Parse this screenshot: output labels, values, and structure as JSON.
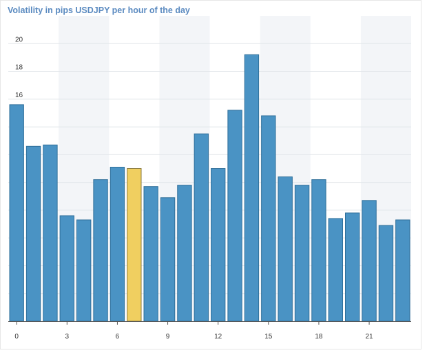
{
  "chart_data": {
    "type": "bar",
    "title": "Volatility in pips USDJPY per hour of the day",
    "xlabel": "",
    "ylabel": "",
    "categories": [
      0,
      1,
      2,
      3,
      4,
      5,
      6,
      7,
      8,
      9,
      10,
      11,
      12,
      13,
      14,
      15,
      16,
      17,
      18,
      19,
      20,
      21,
      22,
      23
    ],
    "values": [
      15.6,
      12.6,
      12.7,
      7.6,
      7.3,
      10.2,
      11.1,
      11.0,
      9.7,
      8.9,
      9.8,
      13.5,
      11.0,
      15.2,
      19.2,
      14.8,
      10.4,
      9.8,
      10.2,
      7.4,
      7.8,
      8.7,
      6.9,
      7.3
    ],
    "highlighted_index": 7,
    "ylim": [
      0,
      22
    ],
    "yticks": [
      0,
      2,
      4,
      6,
      8,
      10,
      12,
      14,
      16,
      18,
      20
    ],
    "xticks": [
      0,
      3,
      6,
      9,
      12,
      15,
      18,
      21
    ],
    "grid": true,
    "legend": "none"
  },
  "colors": {
    "bar": "#4a93c4",
    "bar_stroke": "#2f6f9a",
    "highlight": "#f0cf60",
    "highlight_stroke": "#8a7a3a",
    "grid": "#e2e6ea",
    "stripe": "#f3f5f8",
    "title": "#5a8ac0",
    "axis": "#555555"
  }
}
